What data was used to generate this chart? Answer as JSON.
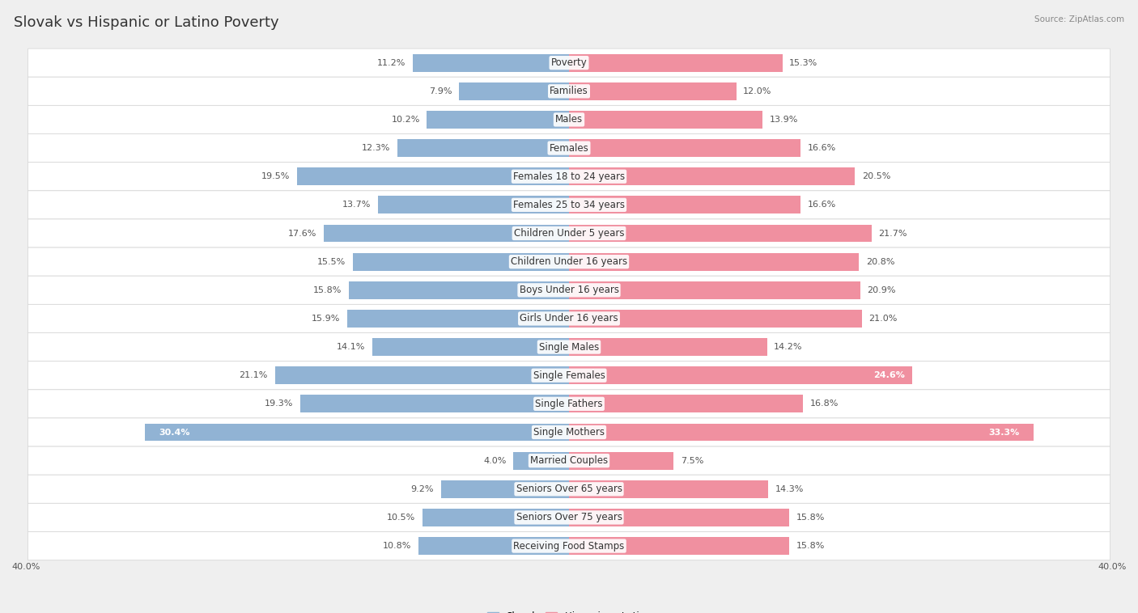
{
  "title": "Slovak vs Hispanic or Latino Poverty",
  "source": "Source: ZipAtlas.com",
  "categories": [
    "Poverty",
    "Families",
    "Males",
    "Females",
    "Females 18 to 24 years",
    "Females 25 to 34 years",
    "Children Under 5 years",
    "Children Under 16 years",
    "Boys Under 16 years",
    "Girls Under 16 years",
    "Single Males",
    "Single Females",
    "Single Fathers",
    "Single Mothers",
    "Married Couples",
    "Seniors Over 65 years",
    "Seniors Over 75 years",
    "Receiving Food Stamps"
  ],
  "slovak_values": [
    11.2,
    7.9,
    10.2,
    12.3,
    19.5,
    13.7,
    17.6,
    15.5,
    15.8,
    15.9,
    14.1,
    21.1,
    19.3,
    30.4,
    4.0,
    9.2,
    10.5,
    10.8
  ],
  "hispanic_values": [
    15.3,
    12.0,
    13.9,
    16.6,
    20.5,
    16.6,
    21.7,
    20.8,
    20.9,
    21.0,
    14.2,
    24.6,
    16.8,
    33.3,
    7.5,
    14.3,
    15.8,
    15.8
  ],
  "slovak_color": "#91b3d4",
  "hispanic_color": "#f090a0",
  "slovak_label": "Slovak",
  "hispanic_label": "Hispanic or Latino",
  "xlim": 40.0,
  "bar_height": 0.62,
  "bg_color": "#efefef",
  "row_bg_color": "#ffffff",
  "title_fontsize": 13,
  "label_fontsize": 8.5,
  "value_fontsize": 8.0
}
